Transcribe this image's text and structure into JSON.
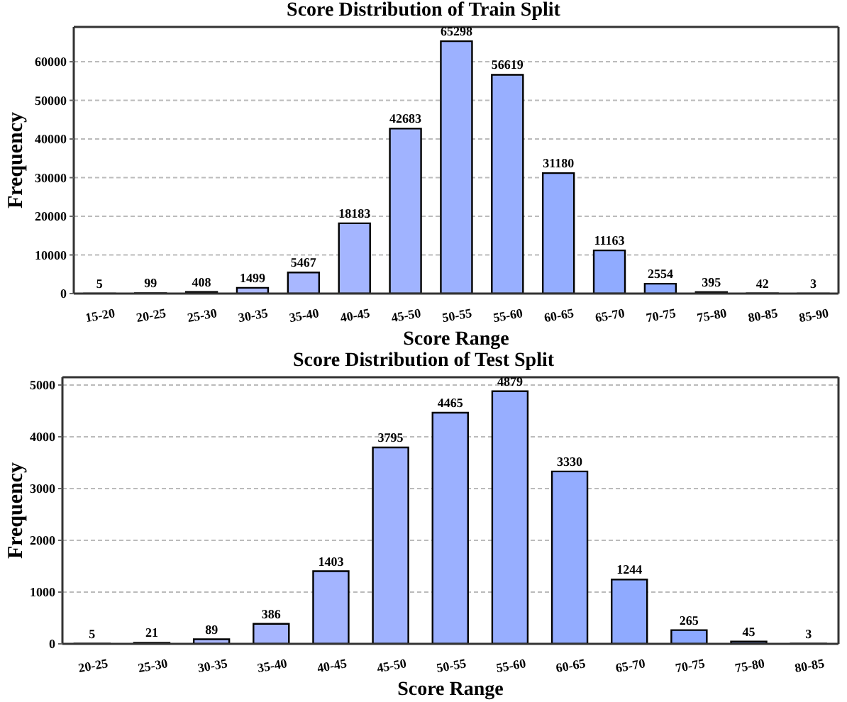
{
  "chart_data": [
    {
      "type": "bar",
      "title": "Score Distribution of Train Split",
      "xlabel": "Score Range",
      "ylabel": "Frequency",
      "categories": [
        "15-20",
        "20-25",
        "25-30",
        "30-35",
        "35-40",
        "40-45",
        "45-50",
        "50-55",
        "55-60",
        "60-65",
        "65-70",
        "70-75",
        "75-80",
        "80-85",
        "85-90"
      ],
      "values": [
        5,
        99,
        408,
        1499,
        5467,
        18183,
        42683,
        65298,
        56619,
        31180,
        11163,
        2554,
        395,
        42,
        3
      ],
      "colors": [
        "#b8c0ff",
        "#b4bdff",
        "#b0bbff",
        "#acb9ff",
        "#a8b7ff",
        "#a4b5ff",
        "#a0b3ff",
        "#9cb1ff",
        "#98afff",
        "#94adff",
        "#90abff",
        "#8ca9ff",
        "#88a7ff",
        "#84a5ff",
        "#80a3ff"
      ],
      "ylim": [
        0,
        69000
      ],
      "yticks": [
        0,
        10000,
        20000,
        30000,
        40000,
        50000,
        60000
      ],
      "grid": "y",
      "data_labels": true,
      "legend": false
    },
    {
      "type": "bar",
      "title": "Score Distribution of Test Split",
      "xlabel": "Score Range",
      "ylabel": "Frequency",
      "categories": [
        "20-25",
        "25-30",
        "30-35",
        "35-40",
        "40-45",
        "45-50",
        "50-55",
        "55-60",
        "60-65",
        "65-70",
        "70-75",
        "75-80",
        "80-85"
      ],
      "values": [
        5,
        21,
        89,
        386,
        1403,
        3795,
        4465,
        4879,
        3330,
        1244,
        265,
        45,
        3
      ],
      "colors": [
        "#b3bdff",
        "#afbaff",
        "#abb8ff",
        "#a7b6ff",
        "#a3b4ff",
        "#9fb2ff",
        "#9bb0ff",
        "#97aeff",
        "#93acff",
        "#8faaff",
        "#8ba8ff",
        "#87a6ff",
        "#83a4ff"
      ],
      "ylim": [
        0,
        5150
      ],
      "yticks": [
        0,
        1000,
        2000,
        3000,
        4000,
        5000
      ],
      "grid": "y",
      "data_labels": true,
      "legend": false
    }
  ]
}
